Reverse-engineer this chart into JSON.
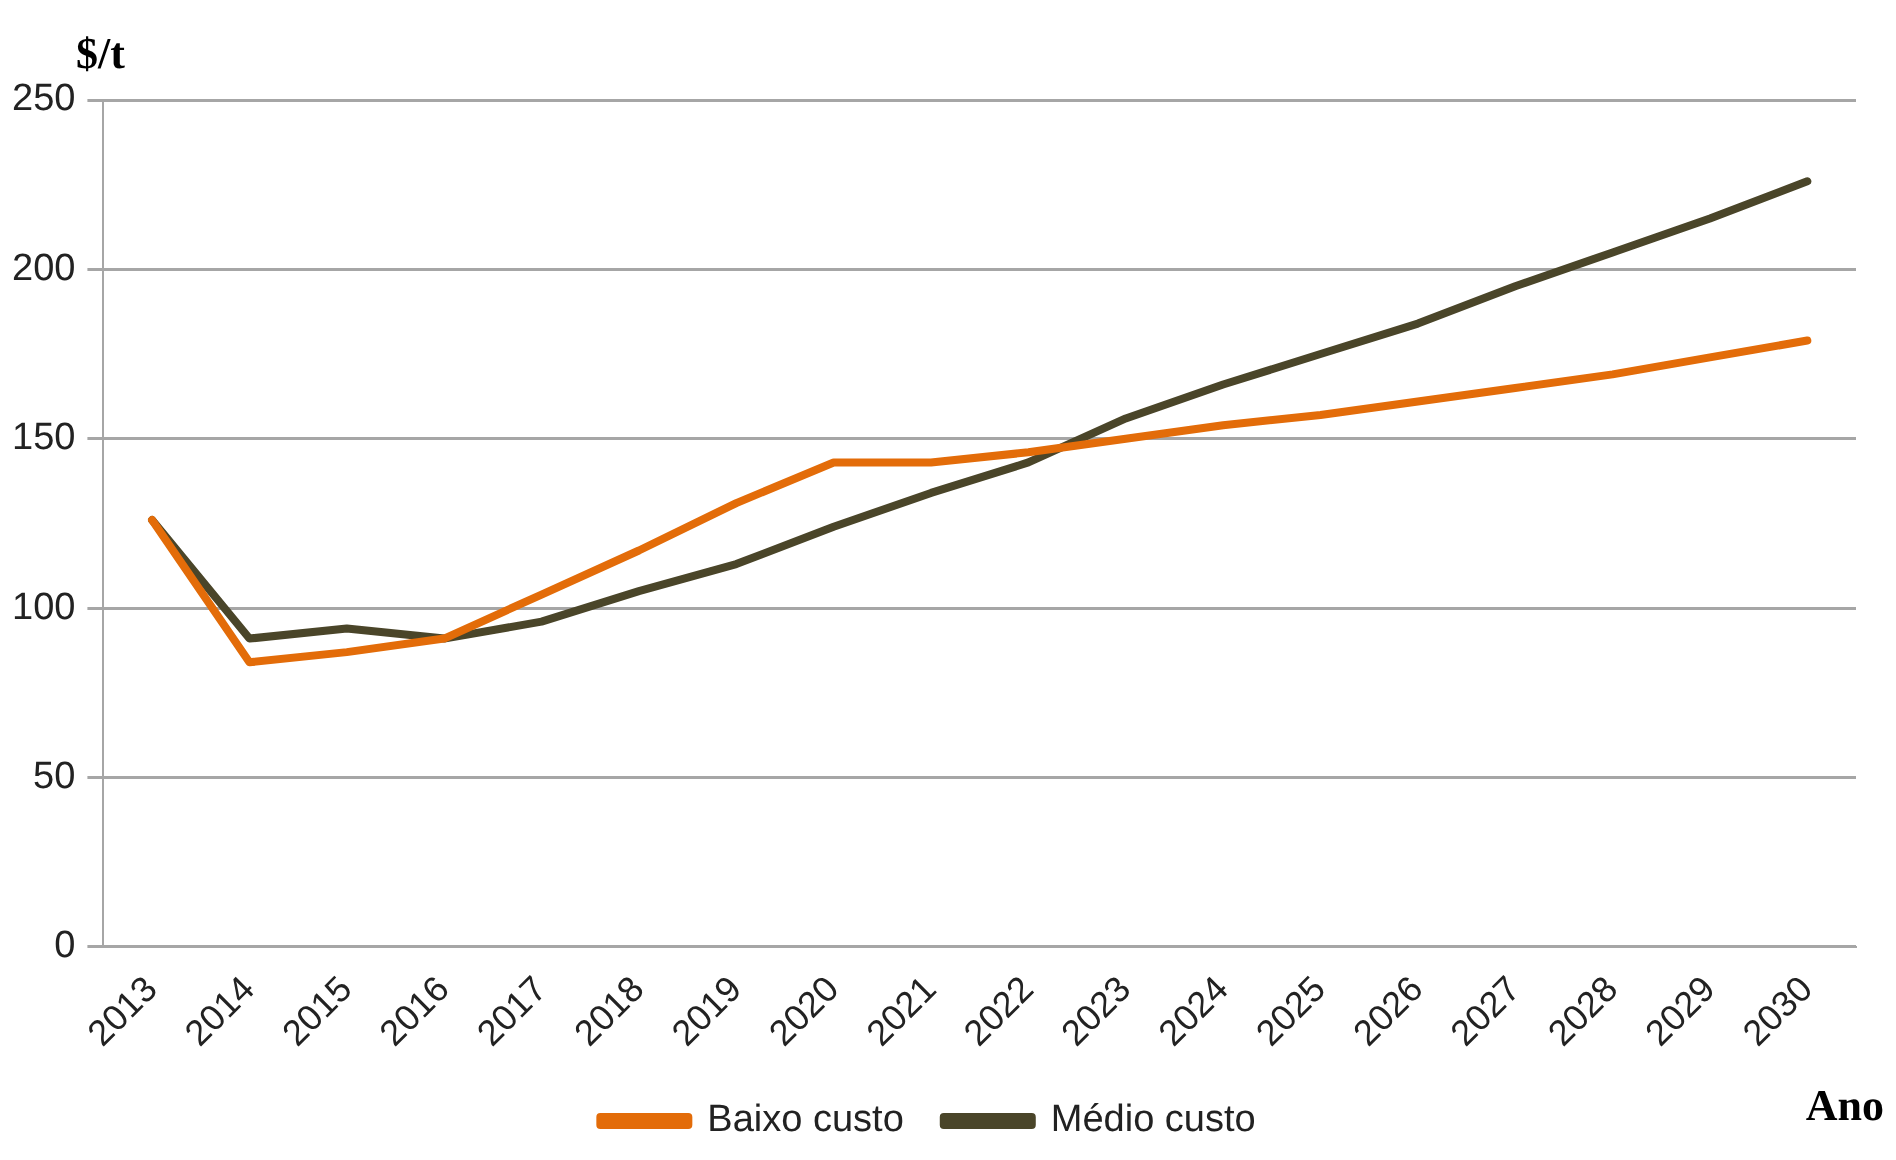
{
  "chart_data": {
    "type": "line",
    "ylabel": "$/t",
    "xlabel": "Ano",
    "categories": [
      "2013",
      "2014",
      "2015",
      "2016",
      "2017",
      "2018",
      "2019",
      "2020",
      "2021",
      "2022",
      "2023",
      "2024",
      "2025",
      "2026",
      "2027",
      "2028",
      "2029",
      "2030"
    ],
    "series": [
      {
        "name": "Baixo custo",
        "color": "#e36c09",
        "values": [
          126,
          84,
          87,
          91,
          104,
          117,
          131,
          143,
          143,
          146,
          150,
          154,
          157,
          161,
          165,
          169,
          174,
          179
        ]
      },
      {
        "name": "Médio custo",
        "color": "#4a4529",
        "values": [
          126,
          91,
          94,
          91,
          96,
          105,
          113,
          124,
          134,
          143,
          156,
          166,
          175,
          184,
          195,
          205,
          215,
          226
        ]
      }
    ],
    "ylim": [
      0,
      250
    ],
    "yticks": [
      0,
      50,
      100,
      150,
      200,
      250
    ],
    "grid": "y",
    "legend": "bottom",
    "marker": "none",
    "line_style": "solid"
  }
}
